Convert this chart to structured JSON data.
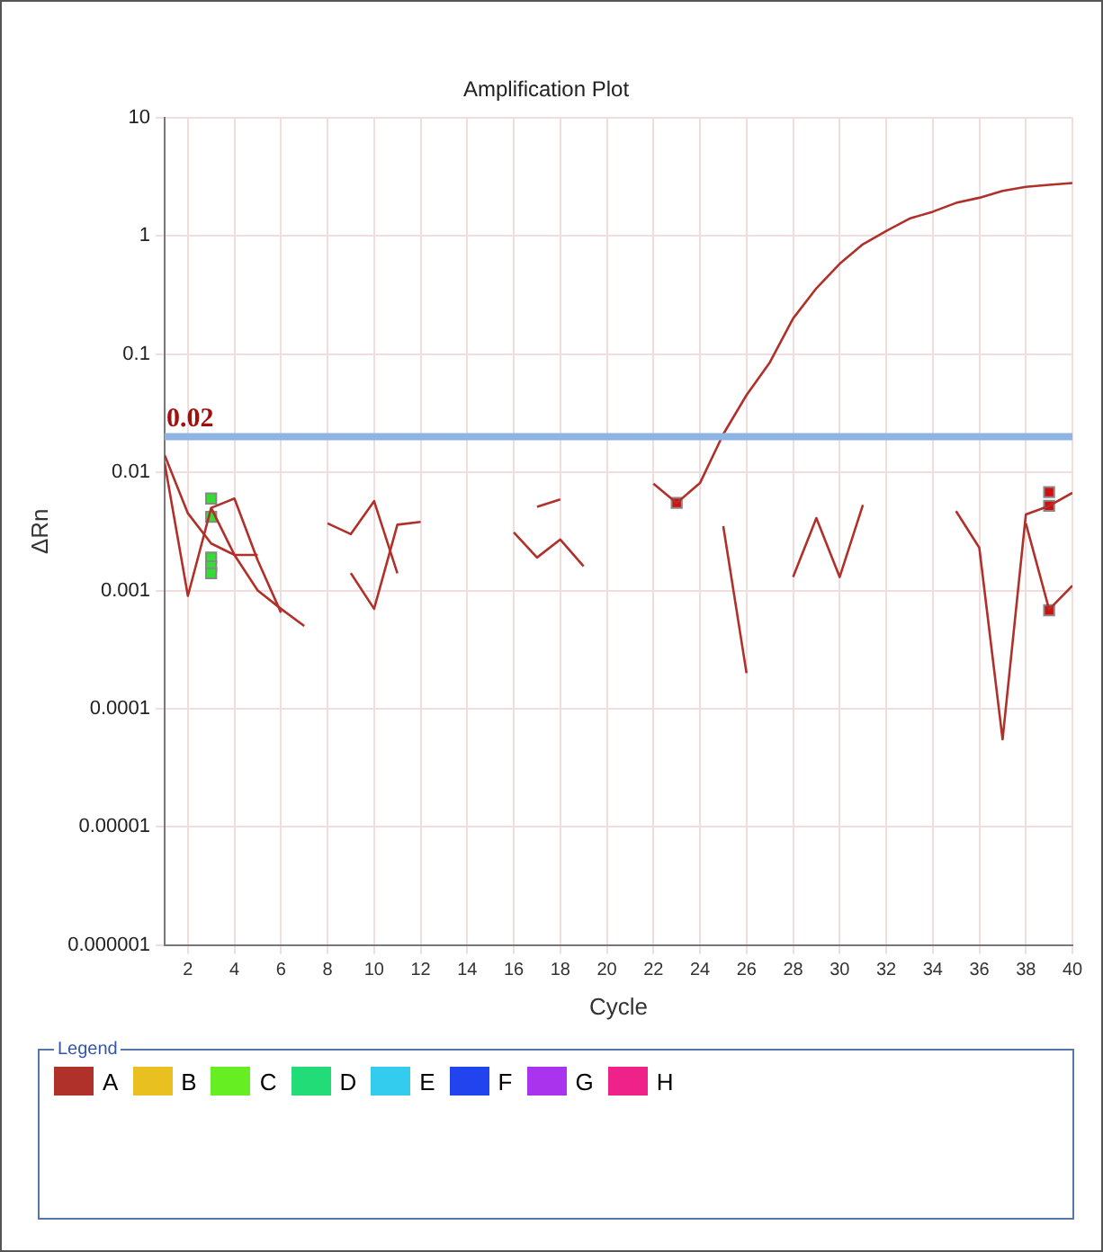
{
  "chart_data": {
    "type": "line",
    "title": "Amplification Plot",
    "xlabel": "Cycle",
    "ylabel": "ΔRn",
    "legend_title": "Legend",
    "log": "y",
    "grid": true,
    "legend": "bottom",
    "marker": "none",
    "line_style": "solid",
    "xlim": [
      1,
      40
    ],
    "xticks": [
      2,
      4,
      6,
      8,
      10,
      12,
      14,
      16,
      18,
      20,
      22,
      24,
      26,
      28,
      30,
      32,
      34,
      36,
      38,
      40
    ],
    "ylim": [
      1e-06,
      10
    ],
    "yticks": [
      {
        "value": 1e-06,
        "label": "0.000001"
      },
      {
        "value": 1e-05,
        "label": "0.00001"
      },
      0.0001,
      0.001,
      0.01,
      0.1,
      1,
      10
    ],
    "ref_lines": [
      {
        "axis": "y",
        "value": 0.02,
        "label": "0.02",
        "color": "#8db4e2"
      }
    ],
    "series": [
      {
        "name": "A",
        "color": "#b0302a",
        "x": [
          22,
          23,
          24,
          25,
          26,
          27,
          28,
          29,
          30,
          31,
          32,
          33,
          34,
          35,
          36,
          37,
          38,
          39,
          40
        ],
        "values": [
          0.008,
          0.0055,
          0.0081,
          0.021,
          0.045,
          0.085,
          0.2,
          0.36,
          0.58,
          0.85,
          1.1,
          1.4,
          1.6,
          1.9,
          2.1,
          2.4,
          2.6,
          2.7,
          2.8
        ]
      },
      {
        "color": "#b0302a",
        "x": [
          1,
          2,
          3,
          4,
          5
        ],
        "values": [
          0.014,
          0.0045,
          0.0025,
          0.002,
          0.002
        ]
      },
      {
        "color": "#b0302a",
        "x": [
          1,
          2,
          3,
          4,
          5,
          6
        ],
        "values": [
          0.012,
          0.0009,
          0.005,
          0.006,
          0.0018,
          0.00065
        ]
      },
      {
        "color": "#b0302a",
        "x": [
          3,
          4,
          5,
          6,
          7
        ],
        "values": [
          0.005,
          0.002,
          0.001,
          0.0007,
          0.0005
        ]
      },
      {
        "color": "#b0302a",
        "x": [
          8,
          9,
          10,
          11
        ],
        "values": [
          0.0037,
          0.003,
          0.0057,
          0.0014
        ]
      },
      {
        "color": "#b0302a",
        "x": [
          9,
          10,
          11,
          12
        ],
        "values": [
          0.0014,
          0.0007,
          0.0036,
          0.0038
        ]
      },
      {
        "color": "#b0302a",
        "x": [
          16,
          17,
          18,
          19
        ],
        "values": [
          0.0031,
          0.0019,
          0.0027,
          0.0016
        ]
      },
      {
        "color": "#b0302a",
        "x": [
          17,
          18
        ],
        "values": [
          0.0051,
          0.0059
        ]
      },
      {
        "color": "#b0302a",
        "x": [
          25,
          26
        ],
        "values": [
          0.0035,
          0.0002
        ]
      },
      {
        "color": "#b0302a",
        "x": [
          28,
          29,
          30,
          31
        ],
        "values": [
          0.0013,
          0.0041,
          0.0013,
          0.0053
        ]
      },
      {
        "color": "#b0302a",
        "x": [
          35,
          36,
          37,
          38,
          39,
          40
        ],
        "values": [
          0.0047,
          0.0023,
          5.5e-05,
          0.0044,
          0.0052,
          0.0067
        ]
      },
      {
        "color": "#b0302a",
        "x": [
          38,
          39,
          40
        ],
        "values": [
          0.0037,
          0.00069,
          0.0011
        ]
      },
      {
        "type": "scatter",
        "marker": "square",
        "color": "#d01010",
        "x": [
          23,
          39,
          39,
          39
        ],
        "values": [
          0.0055,
          0.0068,
          0.0052,
          0.00068
        ]
      },
      {
        "type": "scatter",
        "marker": "square",
        "color": "#33dd33",
        "x": [
          3,
          3,
          3,
          3,
          3
        ],
        "values": [
          0.006,
          0.0042,
          0.0019,
          0.0016,
          0.0014
        ]
      },
      {
        "name": "B",
        "color": "#e8c020"
      },
      {
        "name": "C",
        "color": "#66ee22"
      },
      {
        "name": "D",
        "color": "#22dd77"
      },
      {
        "name": "E",
        "color": "#33ccee"
      },
      {
        "name": "F",
        "color": "#2244ee"
      },
      {
        "name": "G",
        "color": "#aa33ee"
      },
      {
        "name": "H",
        "color": "#ee2288"
      }
    ]
  }
}
